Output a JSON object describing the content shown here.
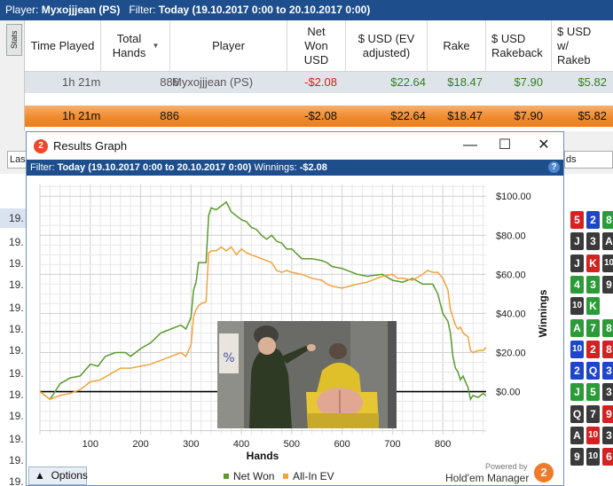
{
  "filter_bar": {
    "player_label": "Player:",
    "player_value": "Myxojjjean (PS)",
    "filter_label": "Filter:",
    "filter_value": "Today (19.10.2017 0:00 to 20.10.2017 0:00)"
  },
  "side_tab": {
    "label": "Stats"
  },
  "table": {
    "columns": [
      "Time Played",
      "Total Hands",
      "Player",
      "Net Won USD",
      "$ USD (EV adjusted)",
      "Rake",
      "$ USD Rakeback",
      "$ USD w/ Rakeb"
    ],
    "rows": [
      {
        "time": "1h 21m",
        "hands": "886",
        "player": "Myxojjjean (PS)",
        "net_won": "-$2.08",
        "ev": "$22.64",
        "rake": "$18.47",
        "rakeback": "$7.90",
        "with_rb": "$5.82"
      }
    ],
    "totals": {
      "time": "1h 21m",
      "hands": "886",
      "player": "",
      "net_won": "-$2.08",
      "ev": "$22.64",
      "rake": "$18.47",
      "rakeback": "$7.90",
      "with_rb": "$5.82"
    }
  },
  "under": {
    "left_button": "Las",
    "right_tab": "ds"
  },
  "hand_list": [
    "19.",
    "19.",
    "19.",
    "19.",
    "19.",
    "19.",
    "19.",
    "19.",
    "19.",
    "19.",
    "19.",
    "19.",
    "19.",
    "19.",
    "19."
  ],
  "cards": [
    [
      "5",
      "2",
      "8"
    ],
    [
      "J",
      "3",
      "A"
    ],
    [
      "J",
      "K",
      "10"
    ],
    [
      "4",
      "3",
      "9"
    ],
    [
      "10",
      "K",
      ""
    ],
    [
      "A",
      "7",
      "8"
    ],
    [
      "10",
      "2",
      "8"
    ],
    [
      "2",
      "Q",
      "3"
    ],
    [
      "J",
      "5",
      "3"
    ],
    [
      "Q",
      "7",
      "9"
    ],
    [
      "A",
      "10",
      "3"
    ],
    [
      "9",
      "10",
      "6"
    ]
  ],
  "card_colors": [
    [
      "#d42222",
      "#1d47c8",
      "#2b9b38"
    ],
    [
      "#3a3a3a",
      "#3a3a3a",
      "#3a3a3a"
    ],
    [
      "#3a3a3a",
      "#d42222",
      "#3a3a3a"
    ],
    [
      "#2b9b38",
      "#2b9b38",
      "#3a3a3a"
    ],
    [
      "#3a3a3a",
      "#2b9b38",
      ""
    ],
    [
      "#2b9b38",
      "#2b9b38",
      "#2b9b38"
    ],
    [
      "#1d47c8",
      "#d42222",
      "#d42222"
    ],
    [
      "#1d47c8",
      "#1d47c8",
      "#1d47c8"
    ],
    [
      "#2b9b38",
      "#2b9b38",
      "#3a3a3a"
    ],
    [
      "#3a3a3a",
      "#3a3a3a",
      "#d42222"
    ],
    [
      "#3a3a3a",
      "#d42222",
      "#3a3a3a"
    ],
    [
      "#3a3a3a",
      "#3a3a3a",
      "#d42222"
    ]
  ],
  "window": {
    "title": "Results Graph",
    "filter_label": "Filter:",
    "filter_value": "Today (19.10.2017 0:00 to 20.10.2017 0:00)",
    "winnings_label": "Winnings:",
    "winnings_value": "-$2.08",
    "options_label": "Options",
    "powered_by": "Powered by",
    "brand": "Hold'em Manager"
  },
  "chart_data": {
    "type": "line",
    "xlabel": "Hands",
    "ylabel": "Winnings",
    "x_ticks": [
      "100",
      "200",
      "300",
      "400",
      "500",
      "600",
      "700",
      "800"
    ],
    "y_ticks": [
      "$0.00",
      "$20.00",
      "$40.00",
      "$60.00",
      "$80.00",
      "$100.00"
    ],
    "xlim": [
      0,
      886
    ],
    "ylim": [
      -22,
      106
    ],
    "grid": true,
    "legend_position": "bottom",
    "series": [
      {
        "name": "Net Won",
        "color": "#5a9a2f",
        "points": [
          [
            0,
            0
          ],
          [
            20,
            -4
          ],
          [
            40,
            4
          ],
          [
            60,
            7
          ],
          [
            80,
            8
          ],
          [
            100,
            14
          ],
          [
            115,
            13
          ],
          [
            130,
            18
          ],
          [
            150,
            20
          ],
          [
            170,
            20
          ],
          [
            180,
            18
          ],
          [
            200,
            22
          ],
          [
            220,
            25
          ],
          [
            240,
            30
          ],
          [
            260,
            32
          ],
          [
            280,
            34
          ],
          [
            290,
            32
          ],
          [
            300,
            38
          ],
          [
            305,
            52
          ],
          [
            310,
            56
          ],
          [
            315,
            66
          ],
          [
            320,
            66
          ],
          [
            330,
            66
          ],
          [
            335,
            90
          ],
          [
            340,
            94
          ],
          [
            350,
            93
          ],
          [
            360,
            95
          ],
          [
            370,
            97
          ],
          [
            380,
            92
          ],
          [
            390,
            90
          ],
          [
            400,
            88
          ],
          [
            410,
            87
          ],
          [
            420,
            84
          ],
          [
            430,
            83
          ],
          [
            440,
            80
          ],
          [
            450,
            78
          ],
          [
            460,
            80
          ],
          [
            470,
            77
          ],
          [
            480,
            76
          ],
          [
            490,
            73
          ],
          [
            500,
            73
          ],
          [
            520,
            68
          ],
          [
            540,
            68
          ],
          [
            560,
            67
          ],
          [
            570,
            66
          ],
          [
            580,
            64
          ],
          [
            600,
            63
          ],
          [
            630,
            60
          ],
          [
            650,
            59
          ],
          [
            680,
            60
          ],
          [
            700,
            57
          ],
          [
            720,
            56
          ],
          [
            740,
            58
          ],
          [
            760,
            55
          ],
          [
            780,
            55
          ],
          [
            790,
            50
          ],
          [
            800,
            40
          ],
          [
            810,
            36
          ],
          [
            815,
            30
          ],
          [
            820,
            18
          ],
          [
            825,
            12
          ],
          [
            830,
            10
          ],
          [
            835,
            6
          ],
          [
            840,
            8
          ],
          [
            850,
            2
          ],
          [
            855,
            -4
          ],
          [
            860,
            -2
          ],
          [
            870,
            -3
          ],
          [
            880,
            -1
          ],
          [
            886,
            -2.08
          ]
        ]
      },
      {
        "name": "All-In EV",
        "color": "#f3a33c",
        "points": [
          [
            0,
            0
          ],
          [
            20,
            -4
          ],
          [
            40,
            -2
          ],
          [
            60,
            -1
          ],
          [
            80,
            1
          ],
          [
            100,
            5
          ],
          [
            120,
            6
          ],
          [
            140,
            9
          ],
          [
            160,
            12
          ],
          [
            180,
            12
          ],
          [
            200,
            13
          ],
          [
            220,
            14
          ],
          [
            240,
            16
          ],
          [
            260,
            18
          ],
          [
            280,
            20
          ],
          [
            290,
            18
          ],
          [
            300,
            24
          ],
          [
            305,
            38
          ],
          [
            310,
            42
          ],
          [
            315,
            44
          ],
          [
            320,
            45
          ],
          [
            330,
            46
          ],
          [
            335,
            71
          ],
          [
            340,
            72
          ],
          [
            350,
            72
          ],
          [
            360,
            74
          ],
          [
            370,
            72
          ],
          [
            380,
            74
          ],
          [
            390,
            70
          ],
          [
            400,
            73
          ],
          [
            410,
            71
          ],
          [
            420,
            70
          ],
          [
            440,
            68
          ],
          [
            460,
            66
          ],
          [
            470,
            62
          ],
          [
            480,
            61
          ],
          [
            490,
            62
          ],
          [
            500,
            61
          ],
          [
            520,
            60
          ],
          [
            540,
            58
          ],
          [
            560,
            57
          ],
          [
            570,
            55
          ],
          [
            580,
            54
          ],
          [
            600,
            53
          ],
          [
            630,
            55
          ],
          [
            650,
            56
          ],
          [
            680,
            59
          ],
          [
            700,
            60
          ],
          [
            710,
            58
          ],
          [
            720,
            58
          ],
          [
            740,
            57
          ],
          [
            760,
            60
          ],
          [
            770,
            62
          ],
          [
            780,
            61
          ],
          [
            790,
            61
          ],
          [
            800,
            58
          ],
          [
            810,
            52
          ],
          [
            815,
            42
          ],
          [
            820,
            38
          ],
          [
            825,
            34
          ],
          [
            830,
            32
          ],
          [
            835,
            33
          ],
          [
            840,
            30
          ],
          [
            850,
            28
          ],
          [
            855,
            21
          ],
          [
            860,
            20
          ],
          [
            870,
            21
          ],
          [
            880,
            21
          ],
          [
            886,
            22.64
          ]
        ]
      }
    ]
  }
}
